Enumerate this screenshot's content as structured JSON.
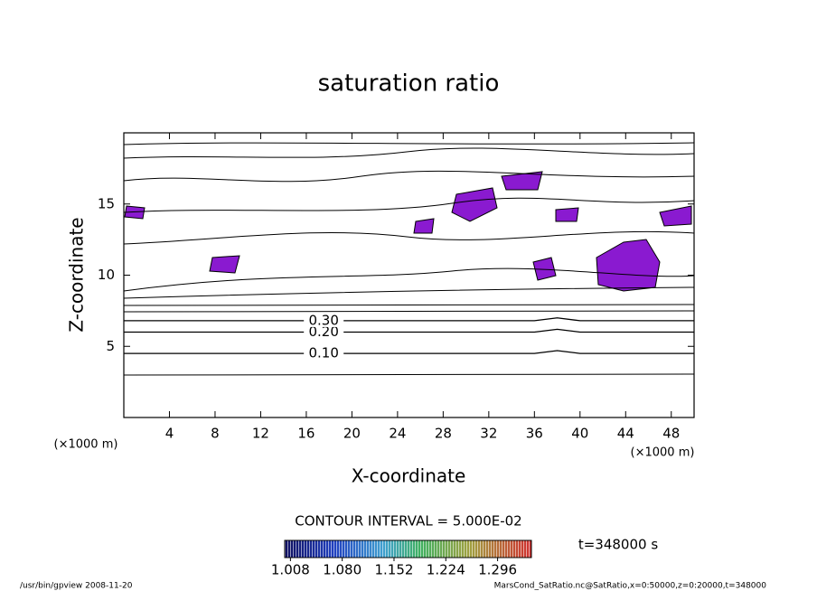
{
  "chart_data": {
    "type": "contour",
    "title": "saturation ratio",
    "x_label": "X-coordinate",
    "y_label": "Z-coordinate",
    "x_unit": "(×1000 m)",
    "y_unit": "(×1000 m)",
    "xlim": [
      0,
      50
    ],
    "ylim": [
      0,
      20
    ],
    "xticks": [
      4,
      8,
      12,
      16,
      20,
      24,
      28,
      32,
      36,
      40,
      44,
      48
    ],
    "yticks": [
      5,
      10,
      15
    ],
    "x": [
      0,
      10,
      20,
      30,
      36,
      38,
      40,
      50
    ],
    "contours": [
      {
        "name": "0.10",
        "values": [
          4.5,
          4.5,
          4.5,
          4.5,
          4.5,
          4.7,
          4.5,
          4.5
        ]
      },
      {
        "name": "0.20",
        "values": [
          6.0,
          6.0,
          6.0,
          6.0,
          6.0,
          6.2,
          6.0,
          6.0
        ]
      },
      {
        "name": "0.30",
        "values": [
          6.8,
          6.8,
          6.8,
          6.8,
          6.8,
          7.0,
          6.8,
          6.8
        ]
      }
    ],
    "contour_interval": "CONTOUR INTERVAL = 5.000E-02",
    "colorbar": {
      "lim": [
        1.0,
        1.343
      ],
      "ticks": [
        {
          "value": 1.008,
          "label": "1.008"
        },
        {
          "value": 1.08,
          "label": "1.080"
        },
        {
          "value": 1.152,
          "label": "1.152"
        },
        {
          "value": 1.224,
          "label": "1.224"
        },
        {
          "value": 1.296,
          "label": "1.296"
        }
      ]
    },
    "time_label": "t=348000 s",
    "footer_left": "/usr/bin/gpview  2008-11-20",
    "footer_right": "MarsCond_SatRatio.nc@SatRatio,x=0:50000,z=0:20000,t=348000"
  }
}
